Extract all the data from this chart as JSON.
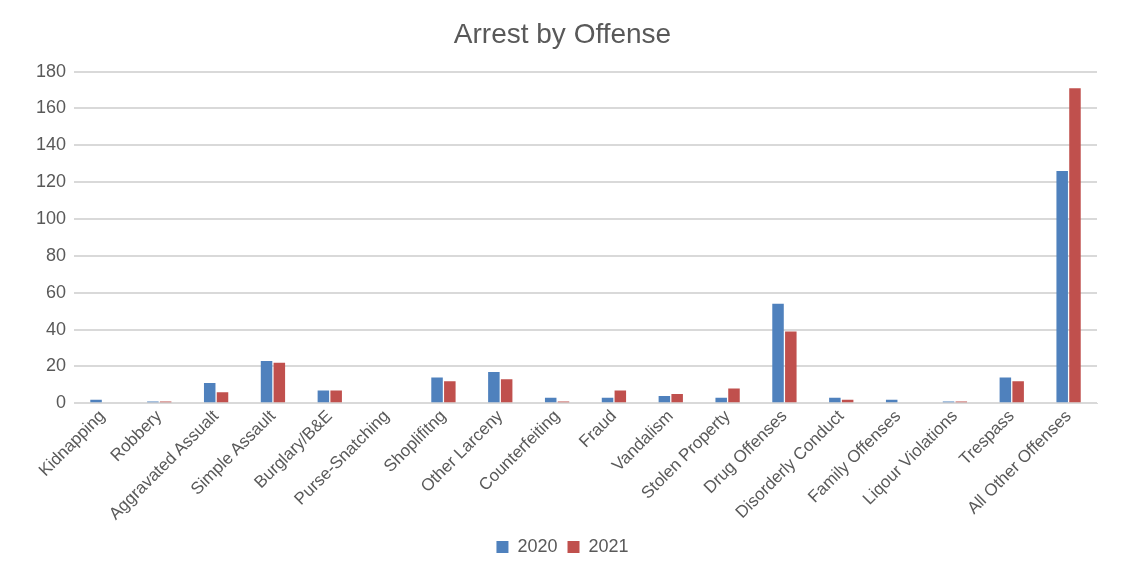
{
  "chart_data": {
    "type": "bar",
    "title": "Arrest by Offense",
    "categories": [
      "Kidnapping",
      "Robbery",
      "Aggravated Assualt",
      "Simple Assault",
      "Burglary/B&E",
      "Purse-Snatching",
      "Shoplifitng",
      "Other Larceny",
      "Counterfeiting",
      "Fraud",
      "Vandalism",
      "Stolen Property",
      "Drug Offenses",
      "Disorderly Conduct",
      "Family Offenses",
      "Liqour Violations",
      "Trespass",
      "All Other Offenses"
    ],
    "series": [
      {
        "name": "2020",
        "color": "#4f81bd",
        "values": [
          2,
          1,
          11,
          23,
          7,
          0,
          14,
          17,
          3,
          3,
          4,
          3,
          54,
          3,
          2,
          1,
          14,
          126
        ]
      },
      {
        "name": "2021",
        "color": "#c0504d",
        "values": [
          0,
          1,
          6,
          22,
          7,
          0,
          12,
          13,
          1,
          7,
          5,
          8,
          39,
          2,
          0,
          1,
          12,
          171
        ]
      }
    ],
    "ylim": [
      0,
      180
    ],
    "yticks": [
      0,
      20,
      40,
      60,
      80,
      100,
      120,
      140,
      160,
      180
    ],
    "grid": "y",
    "legend": "bottom"
  }
}
